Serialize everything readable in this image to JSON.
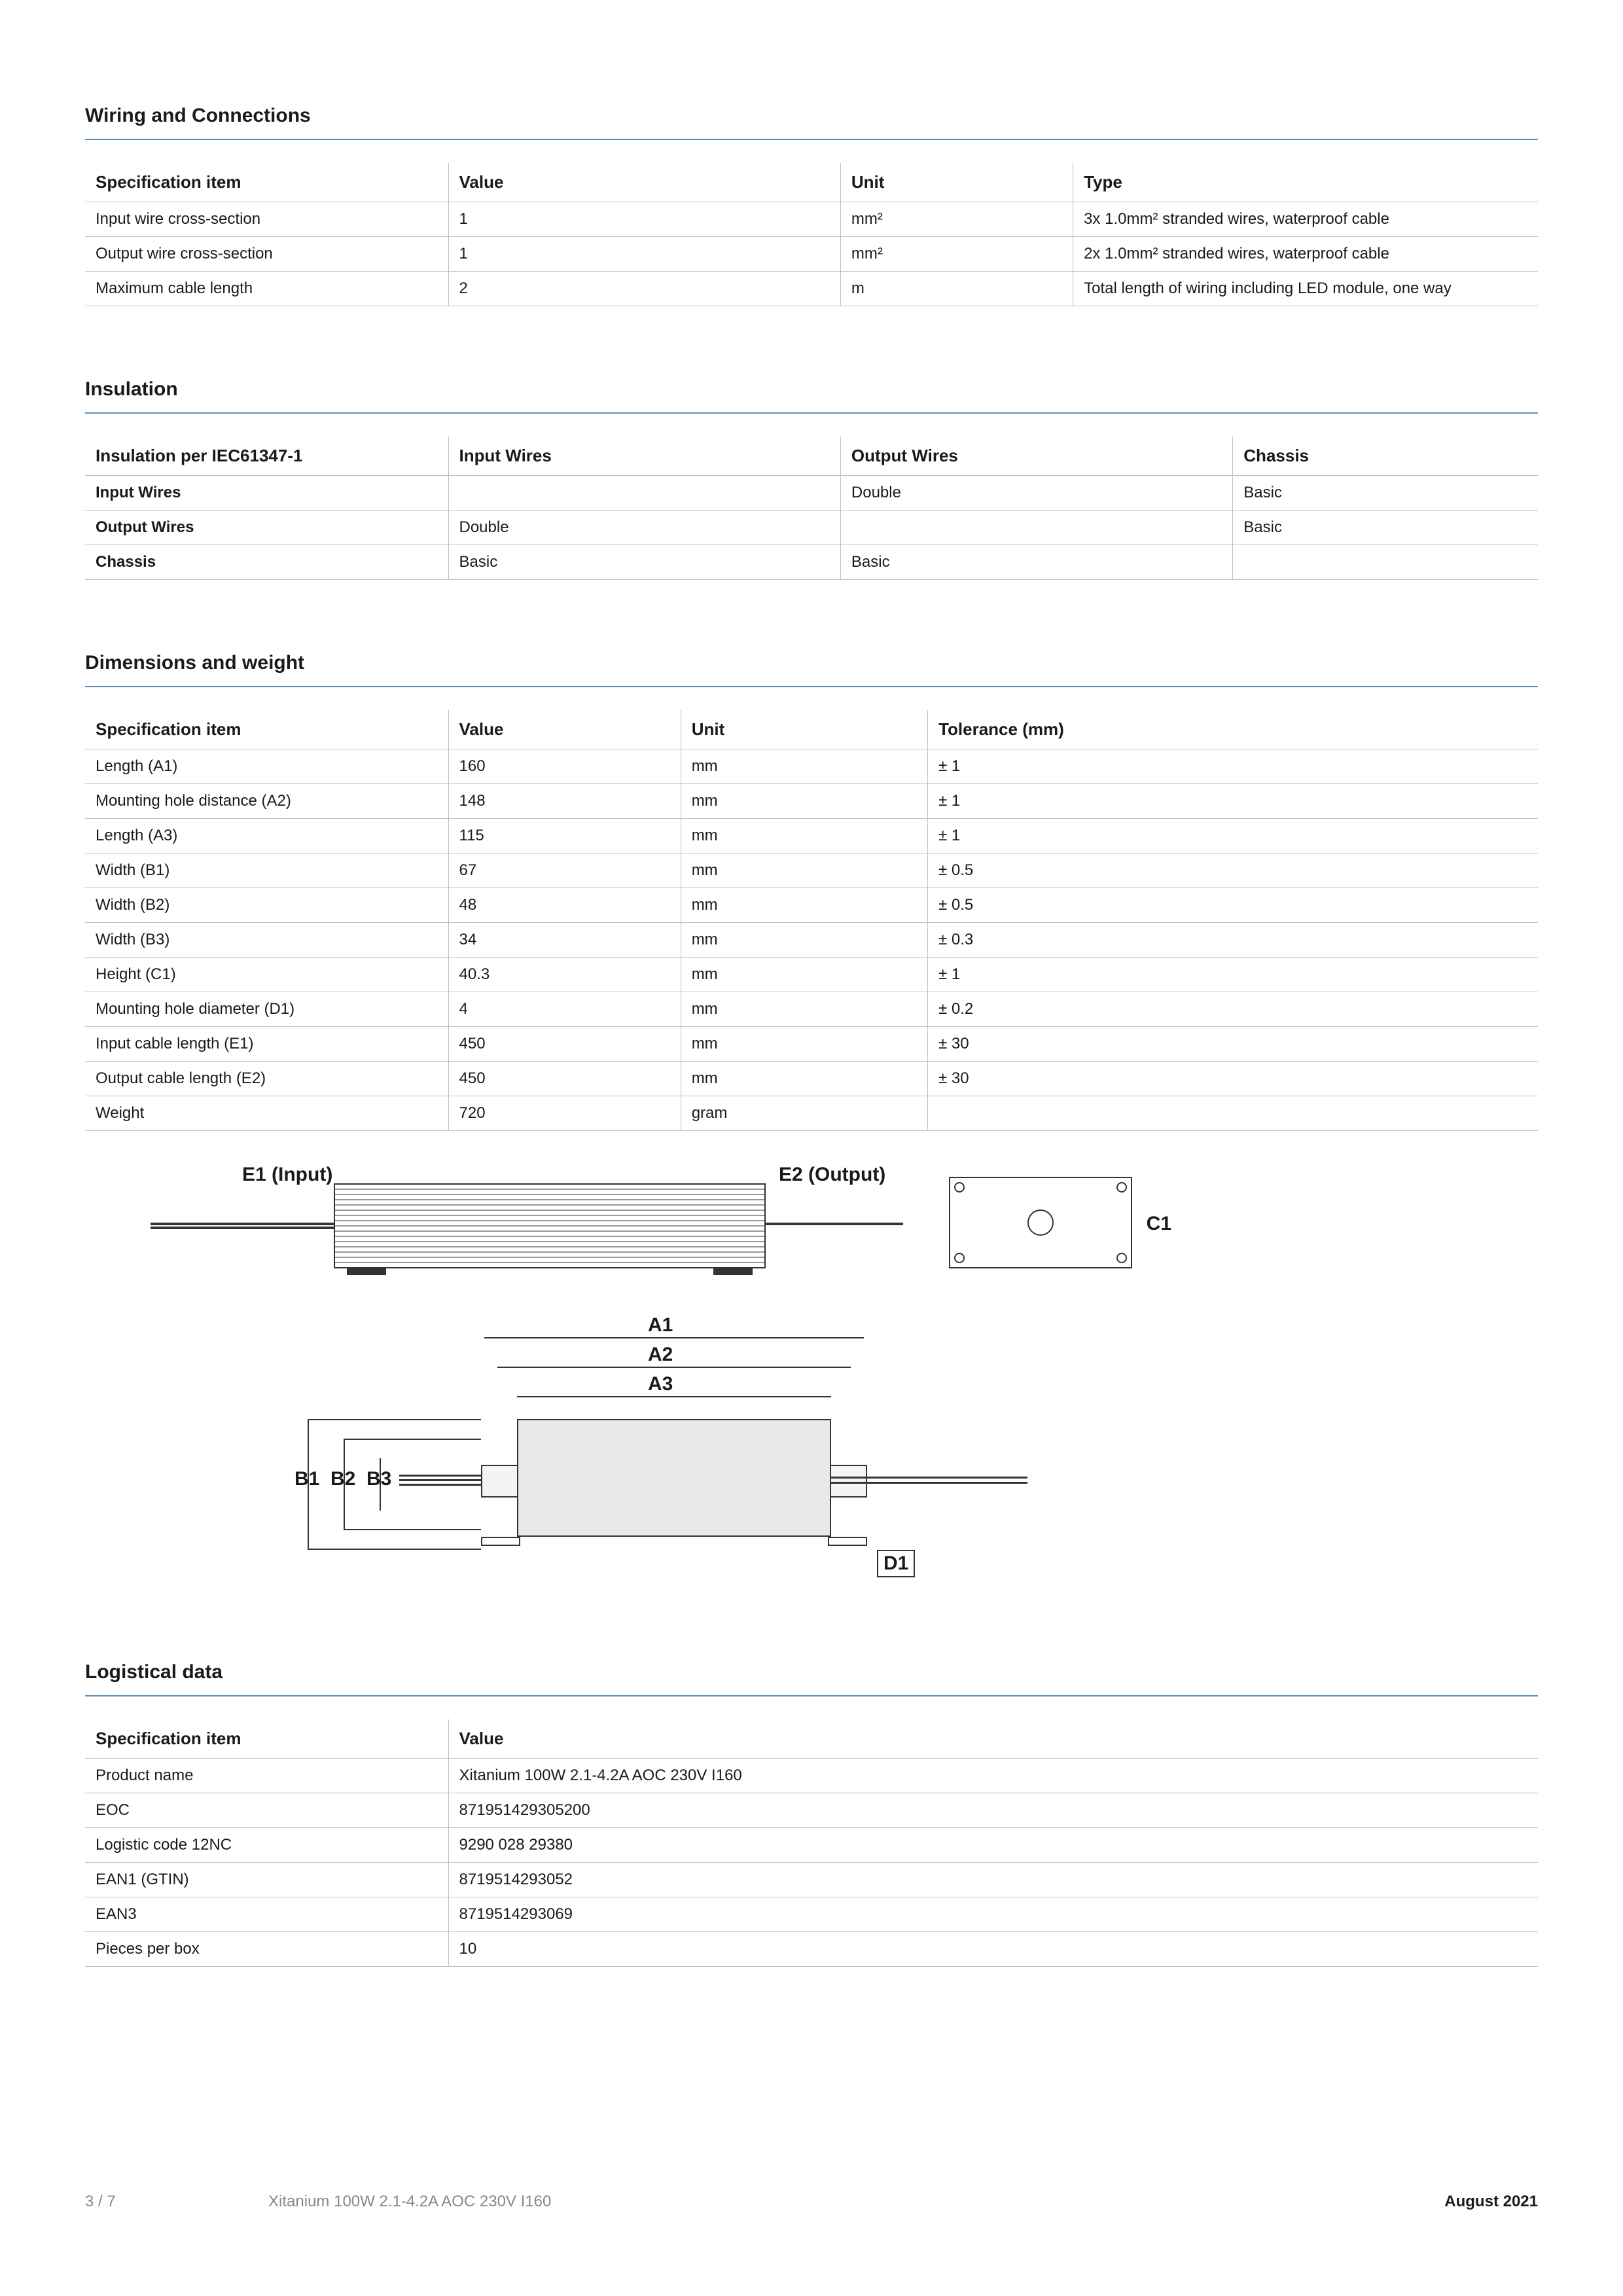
{
  "sections": {
    "wiring": {
      "title": "Wiring and Connections",
      "columns": [
        "Specification item",
        "Value",
        "Unit",
        "Type"
      ],
      "rows": [
        [
          "Input wire cross-section",
          "1",
          "mm²",
          "3x 1.0mm² stranded wires, waterproof cable"
        ],
        [
          "Output wire cross-section",
          "1",
          "mm²",
          "2x 1.0mm² stranded wires, waterproof cable"
        ],
        [
          "Maximum cable length",
          "2",
          "m",
          "Total length of wiring including LED module, one way"
        ]
      ],
      "col_widths": [
        "25%",
        "27%",
        "16%",
        "32%"
      ]
    },
    "insulation": {
      "title": "Insulation",
      "columns": [
        "Insulation per IEC61347-1",
        "Input Wires",
        "Output Wires",
        "Chassis"
      ],
      "rows": [
        [
          "Input Wires",
          "",
          "Double",
          "Basic"
        ],
        [
          "Output Wires",
          "Double",
          "",
          "Basic"
        ],
        [
          "Chassis",
          "Basic",
          "Basic",
          ""
        ]
      ],
      "col_widths": [
        "25%",
        "27%",
        "27%",
        "21%"
      ]
    },
    "dimensions": {
      "title": "Dimensions and weight",
      "columns": [
        "Specification item",
        "Value",
        "Unit",
        "Tolerance (mm)"
      ],
      "rows": [
        [
          "Length (A1)",
          "160",
          "mm",
          "± 1"
        ],
        [
          "Mounting hole distance (A2)",
          "148",
          "mm",
          "± 1"
        ],
        [
          "Length (A3)",
          "115",
          "mm",
          "± 1"
        ],
        [
          "Width (B1)",
          "67",
          "mm",
          "± 0.5"
        ],
        [
          "Width (B2)",
          "48",
          "mm",
          "± 0.5"
        ],
        [
          "Width (B3)",
          "34",
          "mm",
          "± 0.3"
        ],
        [
          "Height (C1)",
          "40.3",
          "mm",
          "± 1"
        ],
        [
          "Mounting hole diameter (D1)",
          "4",
          "mm",
          "± 0.2"
        ],
        [
          "Input cable length (E1)",
          "450",
          "mm",
          "± 30"
        ],
        [
          "Output cable length (E2)",
          "450",
          "mm",
          "± 30"
        ],
        [
          "Weight",
          "720",
          "gram",
          ""
        ]
      ],
      "col_widths": [
        "25%",
        "16%",
        "17%",
        "42%"
      ]
    },
    "logistical": {
      "title": "Logistical data",
      "columns": [
        "Specification item",
        "Value"
      ],
      "rows": [
        [
          "Product name",
          "Xitanium 100W 2.1-4.2A AOC 230V I160"
        ],
        [
          "EOC",
          "871951429305200"
        ],
        [
          "Logistic code 12NC",
          "9290 028 29380"
        ],
        [
          "EAN1 (GTIN)",
          "8719514293052"
        ],
        [
          "EAN3",
          "8719514293069"
        ],
        [
          "Pieces per box",
          "10"
        ]
      ],
      "col_widths": [
        "25%",
        "75%"
      ]
    }
  },
  "diagram": {
    "labels": {
      "e1": "E1 (Input)",
      "e2": "E2 (Output)",
      "c1": "C1",
      "a1": "A1",
      "a2": "A2",
      "a3": "A3",
      "b1": "B1",
      "b2": "B2",
      "b3": "B3",
      "d1": "D1"
    }
  },
  "footer": {
    "page": "3 / 7",
    "product": "Xitanium 100W 2.1-4.2A AOC 230V I160",
    "date": "August 2021"
  },
  "colors": {
    "rule": "#5b8db8",
    "border": "#c0c0c0",
    "text": "#1a1a1a",
    "muted": "#888888"
  }
}
